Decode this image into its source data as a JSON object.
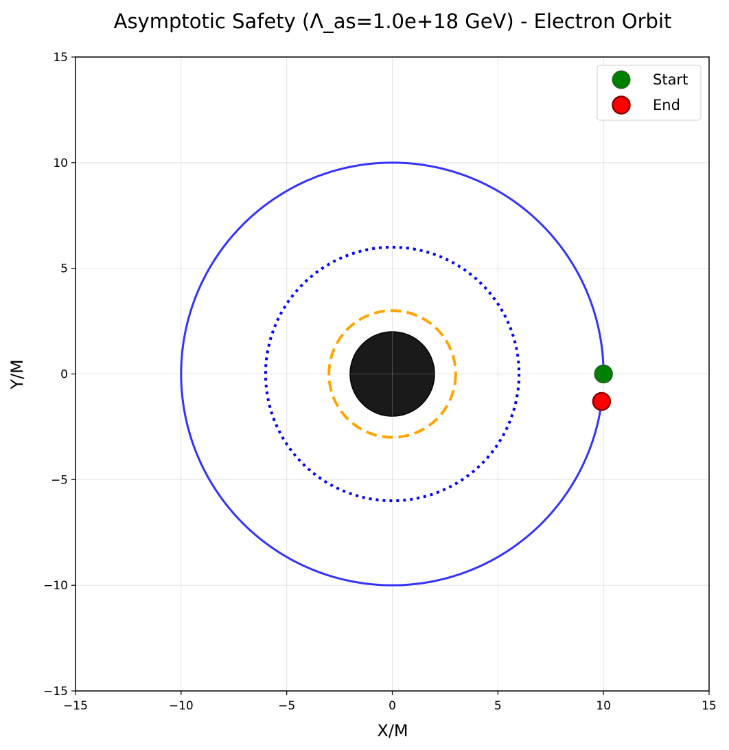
{
  "chart_data": {
    "type": "line",
    "title": "Asymptotic Safety (Λ_as=1.0e+18 GeV) - Electron Orbit",
    "xlabel": "X/M",
    "ylabel": "Y/M",
    "xlim": [
      -15,
      15
    ],
    "ylim": [
      -15,
      15
    ],
    "xticks": [
      -15,
      -10,
      -5,
      0,
      5,
      10,
      15
    ],
    "yticks": [
      -15,
      -10,
      -5,
      0,
      5,
      10,
      15
    ],
    "xtick_labels": [
      "−15",
      "−10",
      "−5",
      "0",
      "5",
      "10",
      "15"
    ],
    "ytick_labels": [
      "−15",
      "−10",
      "−5",
      "0",
      "5",
      "10",
      "15"
    ],
    "grid": true,
    "legend_position": "top-right",
    "orbit": {
      "radius": 10,
      "color": "#3333ff",
      "start_angle_deg": 0,
      "end_angle_deg": 352.5
    },
    "reference_circles": [
      {
        "radius": 6,
        "style": "dotted",
        "color": "#0000ff"
      },
      {
        "radius": 3,
        "style": "dashed",
        "color": "#ffa500"
      }
    ],
    "black_hole": {
      "radius": 2,
      "color": "#1a1a1a"
    },
    "markers": [
      {
        "name": "Start",
        "x": 10.0,
        "y": 0.0,
        "fill": "#008000",
        "edge": "#1a6b1a"
      },
      {
        "name": "End",
        "x": 9.91,
        "y": -1.3,
        "fill": "#ff0000",
        "edge": "#8b0000"
      }
    ]
  }
}
